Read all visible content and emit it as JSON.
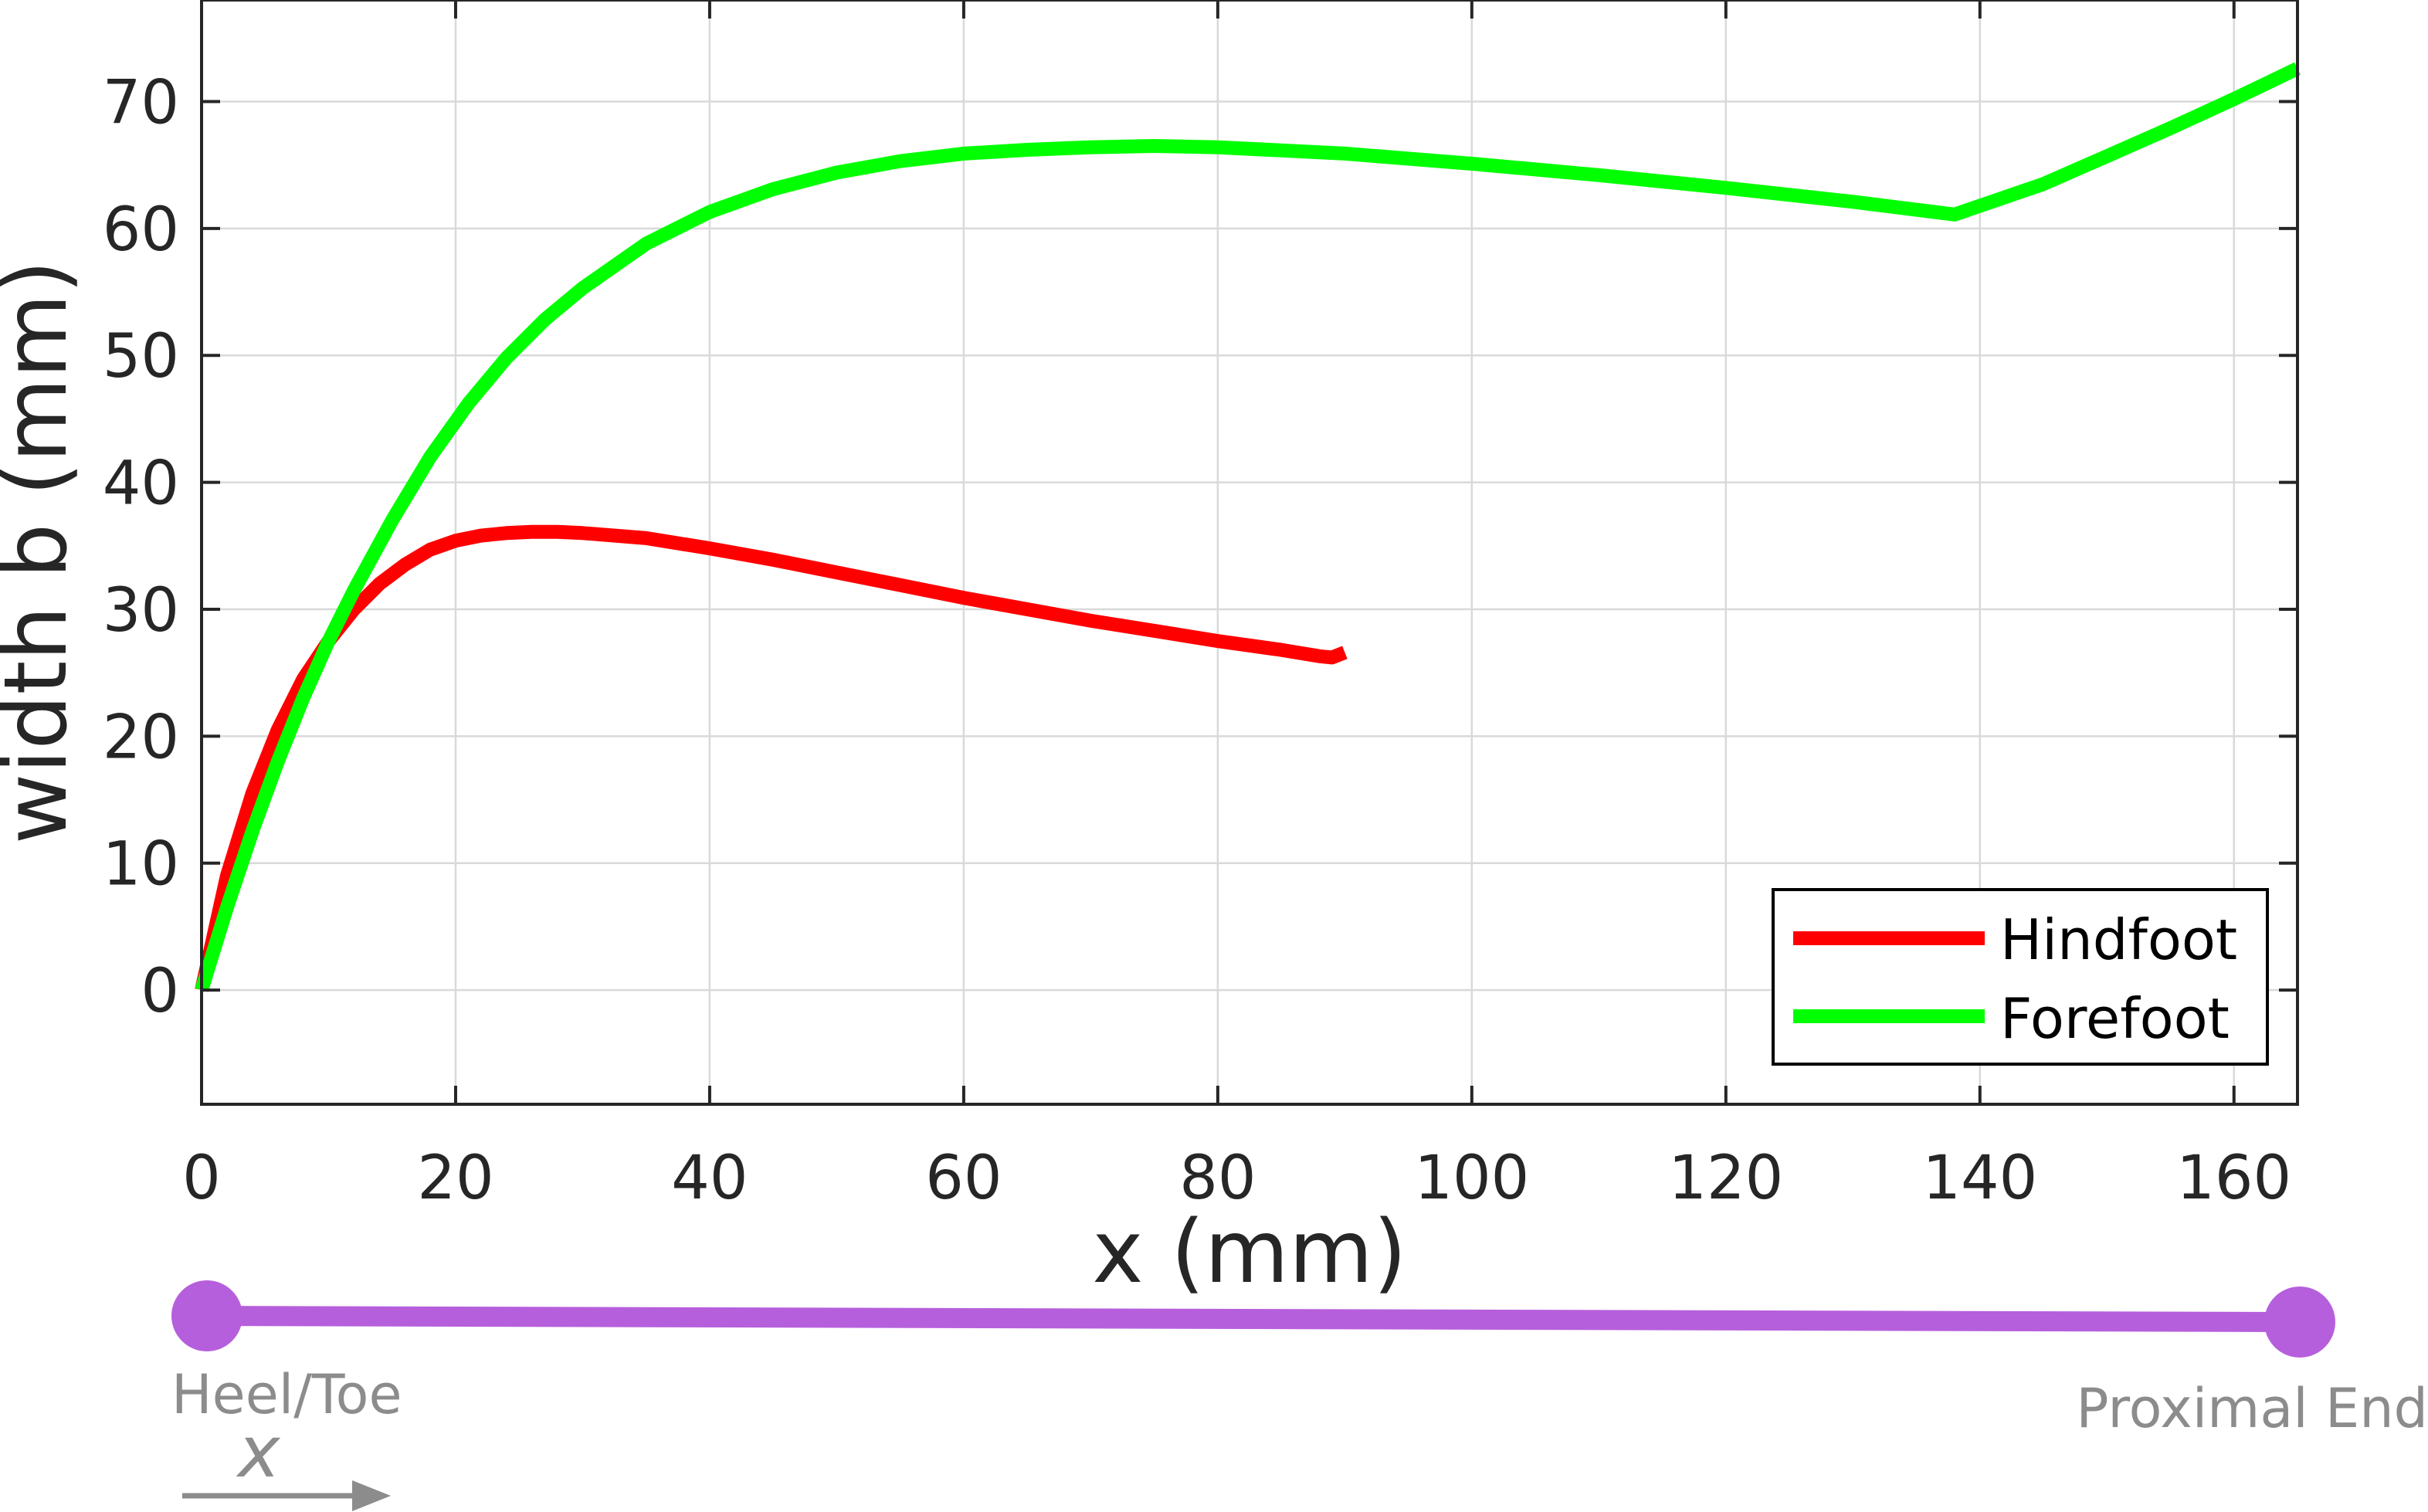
{
  "chart_data": {
    "type": "line",
    "title": "",
    "xlabel": "x (mm)",
    "ylabel": "width b (mm)",
    "xlim": [
      0,
      165
    ],
    "ylim": [
      -9,
      78
    ],
    "xticks": [
      0,
      20,
      40,
      60,
      80,
      100,
      120,
      140,
      160
    ],
    "yticks": [
      0,
      10,
      20,
      30,
      40,
      50,
      60,
      70
    ],
    "grid": true,
    "legend": "bottom-right",
    "series": [
      {
        "name": "Hindfoot",
        "color": "#ff0000",
        "x": [
          0,
          2,
          4,
          6,
          8,
          10,
          12,
          14,
          16,
          18,
          20,
          22,
          24,
          26,
          28,
          30,
          35,
          40,
          45,
          50,
          55,
          60,
          65,
          70,
          75,
          80,
          85,
          88,
          89,
          90
        ],
        "y": [
          0,
          9,
          15.5,
          20.5,
          24.5,
          27.5,
          30,
          32,
          33.5,
          34.7,
          35.4,
          35.8,
          36,
          36.1,
          36.1,
          36,
          35.6,
          34.8,
          33.9,
          32.9,
          31.9,
          30.9,
          30,
          29.1,
          28.3,
          27.5,
          26.8,
          26.3,
          26.2,
          26.6
        ]
      },
      {
        "name": "Forefoot",
        "color": "#00ff00",
        "x": [
          0,
          2,
          4,
          6,
          8,
          10,
          12,
          15,
          18,
          21,
          24,
          27,
          30,
          35,
          40,
          45,
          50,
          55,
          60,
          65,
          70,
          75,
          80,
          90,
          100,
          110,
          120,
          130,
          138,
          145,
          150,
          155,
          160,
          165
        ],
        "y": [
          0,
          6.5,
          12.5,
          18,
          23,
          27.5,
          31.5,
          37,
          42,
          46.2,
          49.8,
          52.8,
          55.3,
          58.8,
          61.3,
          63.1,
          64.4,
          65.3,
          65.9,
          66.2,
          66.4,
          66.5,
          66.4,
          65.9,
          65.1,
          64.2,
          63.2,
          62.1,
          61.1,
          63.5,
          65.7,
          67.9,
          70.2,
          72.6
        ]
      }
    ]
  },
  "annotation": {
    "left_label": "Heel/Toe",
    "right_label": "Proximal End",
    "x_symbol": "x",
    "line_color": "#b65fdc",
    "text_color": "#8c8c8c"
  }
}
